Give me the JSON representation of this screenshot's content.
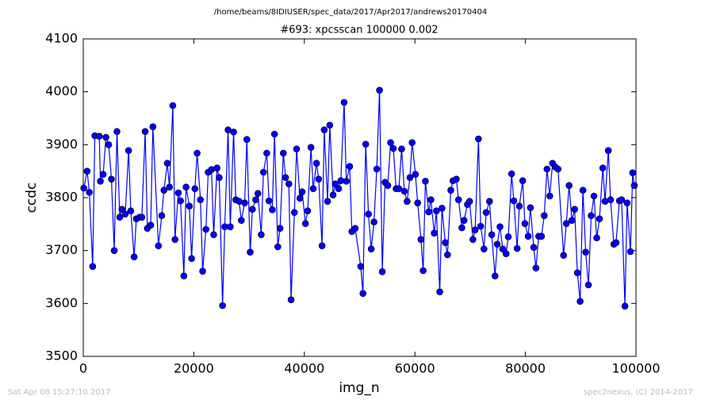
{
  "chart_data": {
    "type": "line",
    "title": "/home/beams/8IDIUSER/spec_data/2017/Apr2017/andrews20170404",
    "subtitle": "#693: xpcsscan 100000 0.002",
    "xlabel": "img_n",
    "ylabel": "ccdc",
    "footer_left": "Sat Apr 08 15:27:10 2017",
    "footer_right": "spec2nexus, (C) 2014-2017",
    "xlim": [
      0,
      100000
    ],
    "xticks": [
      0,
      20000,
      40000,
      60000,
      80000,
      100000
    ],
    "ylim": [
      3500,
      4100
    ],
    "yticks": [
      3500,
      3600,
      3700,
      3800,
      3900,
      4000,
      4100
    ],
    "grid": false,
    "x": [
      100,
      700,
      1100,
      1700,
      2100,
      2900,
      3100,
      3600,
      4100,
      4600,
      5100,
      5600,
      6100,
      6600,
      7000,
      7600,
      8200,
      8600,
      9200,
      9600,
      10200,
      10600,
      11200,
      11600,
      12200,
      12600,
      13600,
      14200,
      14600,
      15200,
      15600,
      16200,
      16600,
      17200,
      17600,
      18200,
      18600,
      19200,
      19600,
      20200,
      20600,
      21200,
      21600,
      22200,
      22600,
      23200,
      23600,
      24200,
      24600,
      25200,
      25600,
      26200,
      26600,
      27200,
      27600,
      28200,
      28600,
      29200,
      29600,
      30200,
      30600,
      31200,
      31600,
      32200,
      32600,
      33200,
      33600,
      34200,
      34600,
      35200,
      35600,
      36200,
      36600,
      37200,
      37600,
      38200,
      38600,
      39200,
      39600,
      40200,
      40600,
      41200,
      41600,
      42200,
      42600,
      43200,
      43600,
      44200,
      44600,
      45200,
      45600,
      46200,
      46600,
      47200,
      47600,
      48200,
      48600,
      49200,
      50200,
      50600,
      51100,
      51600,
      52100,
      52600,
      53100,
      53600,
      54100,
      54600,
      55100,
      55600,
      56100,
      56600,
      57100,
      57600,
      58100,
      58600,
      59100,
      59500,
      60100,
      60500,
      61100,
      61500,
      61900,
      62500,
      62900,
      63500,
      63900,
      64500,
      64900,
      65500,
      65900,
      66500,
      66900,
      67500,
      67900,
      68500,
      68900,
      69500,
      69900,
      70500,
      70900,
      71500,
      71900,
      72500,
      72900,
      73500,
      73900,
      74500,
      74900,
      75400,
      75900,
      76500,
      76900,
      77500,
      77900,
      78500,
      78900,
      79500,
      79900,
      80500,
      80900,
      81500,
      81900,
      82400,
      82900,
      83400,
      83900,
      84400,
      84900,
      85400,
      85900,
      86900,
      87400,
      87900,
      88400,
      88900,
      89400,
      89900,
      90400,
      90900,
      91400,
      91900,
      92400,
      92900,
      93400,
      94000,
      94400,
      95000,
      95400,
      96000,
      96400,
      97000,
      97400,
      98000,
      98400,
      99000,
      99400,
      99700
    ],
    "series": [
      {
        "color": "#0000ff",
        "values": [
          3818,
          3850,
          3810,
          3670,
          3917,
          3916,
          3831,
          3844,
          3914,
          3900,
          3835,
          3700,
          3925,
          3763,
          3778,
          3769,
          3889,
          3775,
          3688,
          3760,
          3763,
          3763,
          3925,
          3742,
          3748,
          3934,
          3709,
          3766,
          3814,
          3865,
          3820,
          3974,
          3721,
          3809,
          3794,
          3652,
          3820,
          3784,
          3685,
          3817,
          3884,
          3796,
          3661,
          3740,
          3848,
          3853,
          3730,
          3856,
          3838,
          3596,
          3745,
          3928,
          3745,
          3924,
          3796,
          3793,
          3757,
          3790,
          3910,
          3697,
          3778,
          3796,
          3808,
          3730,
          3848,
          3884,
          3794,
          3777,
          3920,
          3707,
          3742,
          3884,
          3838,
          3826,
          3607,
          3772,
          3892,
          3799,
          3811,
          3751,
          3775,
          3895,
          3817,
          3865,
          3835,
          3709,
          3928,
          3793,
          3937,
          3805,
          3826,
          3817,
          3832,
          3980,
          3831,
          3859,
          3736,
          3742,
          3670,
          3619,
          3901,
          3769,
          3703,
          3754,
          3854,
          4003,
          3660,
          3829,
          3823,
          3904,
          3893,
          3817,
          3817,
          3892,
          3812,
          3793,
          3838,
          3904,
          3844,
          3790,
          3721,
          3662,
          3831,
          3773,
          3796,
          3733,
          3775,
          3622,
          3780,
          3715,
          3692,
          3814,
          3832,
          3835,
          3796,
          3743,
          3757,
          3787,
          3793,
          3721,
          3739,
          3911,
          3746,
          3703,
          3772,
          3793,
          3730,
          3652,
          3712,
          3745,
          3703,
          3694,
          3726,
          3845,
          3794,
          3704,
          3784,
          3832,
          3751,
          3727,
          3781,
          3706,
          3667,
          3727,
          3727,
          3766,
          3854,
          3803,
          3865,
          3858,
          3854,
          3691,
          3751,
          3823,
          3757,
          3778,
          3658,
          3604,
          3814,
          3697,
          3635,
          3766,
          3803,
          3724,
          3760,
          3856,
          3793,
          3889,
          3796,
          3712,
          3715,
          3794,
          3796,
          3595,
          3790,
          3698,
          3847,
          3823
        ]
      }
    ]
  }
}
